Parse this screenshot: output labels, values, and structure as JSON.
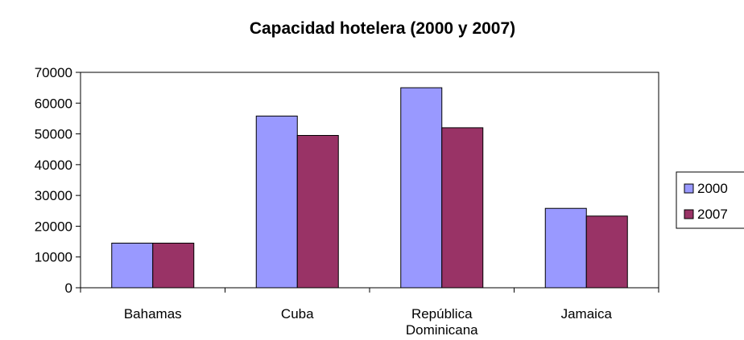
{
  "chart_data": {
    "type": "bar",
    "title": "Capacidad hotelera (2000 y 2007)",
    "categories": [
      [
        "Bahamas"
      ],
      [
        "Cuba"
      ],
      [
        "República",
        "Dominicana"
      ],
      [
        "Jamaica"
      ]
    ],
    "series": [
      {
        "name": "2000",
        "color": "#9999ff",
        "values": [
          14500,
          55800,
          65000,
          25800
        ]
      },
      {
        "name": "2007",
        "color": "#993366",
        "values": [
          14500,
          49500,
          52000,
          23300
        ]
      }
    ],
    "ylim": [
      0,
      70000
    ],
    "yticks": [
      0,
      10000,
      20000,
      30000,
      40000,
      50000,
      60000,
      70000
    ],
    "grid": false,
    "legend_position": "right"
  }
}
